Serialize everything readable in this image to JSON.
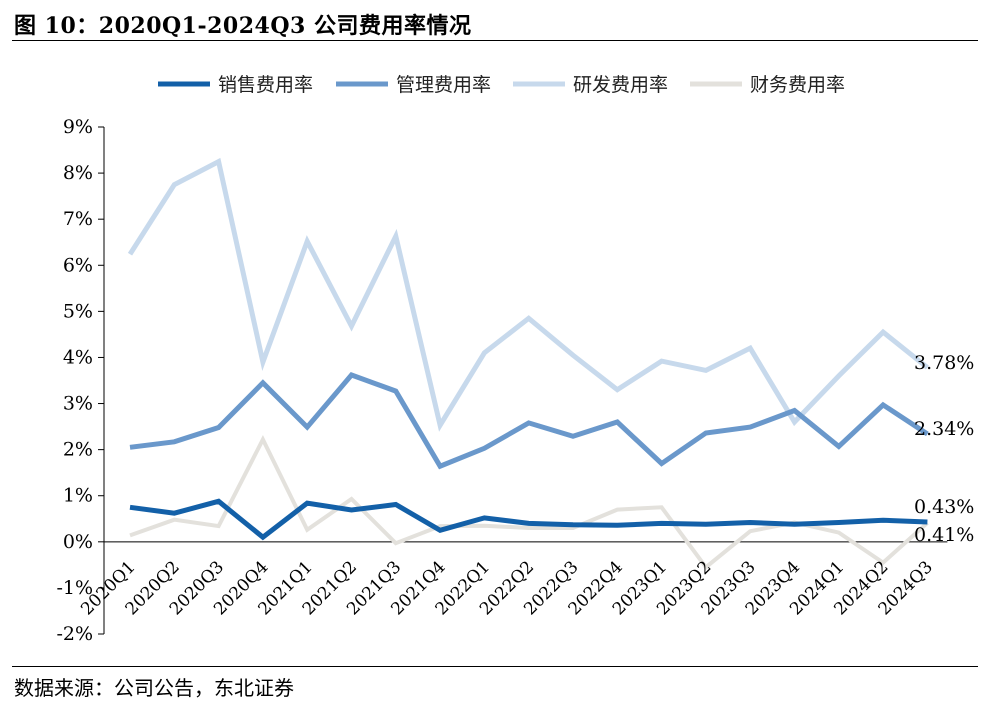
{
  "header": {
    "title": "图 10：2020Q1-2024Q3 公司费用率情况"
  },
  "footer": {
    "source": "数据来源：公司公告，东北证券"
  },
  "chart_data": {
    "type": "line",
    "categories": [
      "2020Q1",
      "2020Q2",
      "2020Q3",
      "2020Q4",
      "2021Q1",
      "2021Q2",
      "2021Q3",
      "2021Q4",
      "2022Q1",
      "2022Q2",
      "2022Q3",
      "2022Q4",
      "2023Q1",
      "2023Q2",
      "2023Q3",
      "2023Q4",
      "2024Q1",
      "2024Q2",
      "2024Q3"
    ],
    "ylim": [
      -2,
      9
    ],
    "yticks": [
      "-2%",
      "-1%",
      "0%",
      "1%",
      "2%",
      "3%",
      "4%",
      "5%",
      "6%",
      "7%",
      "8%",
      "9%"
    ],
    "unit": "%",
    "legend_position": "top",
    "grid": false,
    "series": [
      {
        "name": "销售费用率",
        "color": "#1360a8",
        "width": 5,
        "values": [
          0.75,
          0.62,
          0.88,
          0.1,
          0.84,
          0.69,
          0.81,
          0.25,
          0.52,
          0.4,
          0.37,
          0.36,
          0.4,
          0.38,
          0.42,
          0.38,
          0.42,
          0.47,
          0.43
        ]
      },
      {
        "name": "管理费用率",
        "color": "#6a98cb",
        "width": 5,
        "values": [
          2.05,
          2.17,
          2.48,
          3.45,
          2.49,
          3.62,
          3.27,
          1.64,
          2.03,
          2.58,
          2.29,
          2.6,
          1.7,
          2.36,
          2.49,
          2.85,
          2.07,
          2.97,
          2.34
        ]
      },
      {
        "name": "研发费用率",
        "color": "#c7d9ec",
        "width": 5,
        "values": [
          6.24,
          7.75,
          8.25,
          3.9,
          6.52,
          4.68,
          6.63,
          2.53,
          4.1,
          4.85,
          4.05,
          3.3,
          3.92,
          3.72,
          4.2,
          2.6,
          3.6,
          4.55,
          3.78
        ]
      },
      {
        "name": "财务费用率",
        "color": "#e3e1dc",
        "width": 4,
        "values": [
          0.14,
          0.48,
          0.34,
          2.22,
          0.26,
          0.93,
          -0.03,
          0.34,
          0.35,
          0.3,
          0.3,
          0.7,
          0.75,
          -0.55,
          0.23,
          0.42,
          0.2,
          -0.45,
          0.41
        ]
      }
    ],
    "annotations": [
      {
        "text": "3.78%",
        "value": 3.78
      },
      {
        "text": "2.34%",
        "value": 2.34
      },
      {
        "text": "0.43%",
        "value": 0.43
      },
      {
        "text": "0.41%",
        "value": 0.41
      }
    ]
  }
}
